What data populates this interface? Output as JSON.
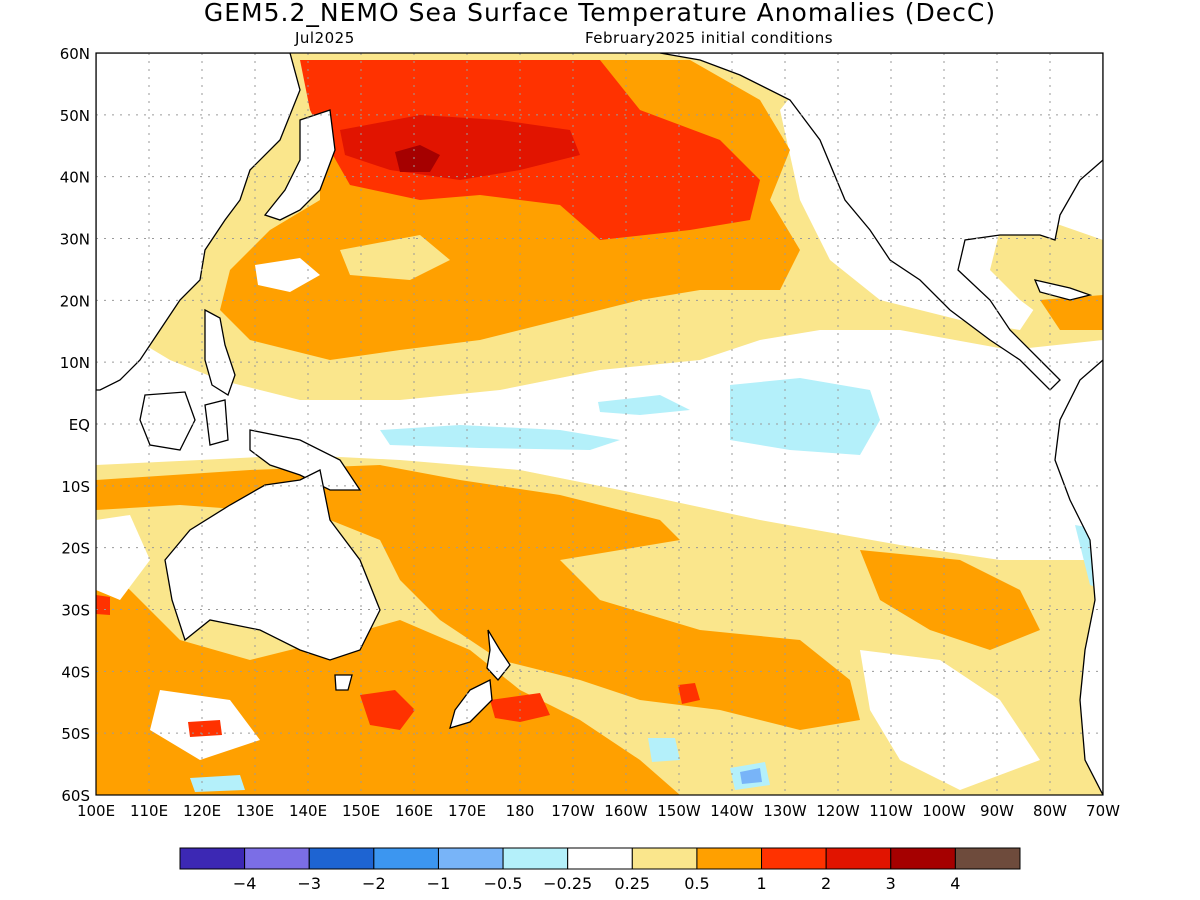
{
  "title": "GEM5.2_NEMO Sea Surface Temperature Anomalies (DecC)",
  "subtitle_left": "Jul2025",
  "subtitle_right": "February2025 initial conditions",
  "map": {
    "lon_range": [
      100,
      290
    ],
    "lat_range": [
      -60,
      60
    ],
    "y_labels": [
      "60N",
      "50N",
      "40N",
      "30N",
      "20N",
      "10N",
      "EQ",
      "10S",
      "20S",
      "30S",
      "40S",
      "50S",
      "60S"
    ],
    "x_labels": [
      "100E",
      "110E",
      "120E",
      "130E",
      "140E",
      "150E",
      "160E",
      "170E",
      "180",
      "170W",
      "160W",
      "150W",
      "140W",
      "130W",
      "120W",
      "110W",
      "100W",
      "90W",
      "80W",
      "70W"
    ]
  },
  "colorbar": {
    "colors": [
      "#3c28b4",
      "#7b6ee6",
      "#1e64d2",
      "#3c96f0",
      "#78b4f8",
      "#b4f0fa",
      "#ffffff",
      "#fae68c",
      "#ffa000",
      "#ff3200",
      "#e11400",
      "#a50000",
      "#6e4b3c"
    ],
    "labels": [
      "−4",
      "−3",
      "−2",
      "−1",
      "−0.5",
      "−0.25",
      "0.25",
      "0.5",
      "1",
      "2",
      "3",
      "4"
    ]
  },
  "palette": {
    "white": "#ffffff",
    "pale_yellow": "#fae68c",
    "orange": "#ffa000",
    "red_orange": "#ff3200",
    "red": "#e11400",
    "dark_red": "#a50000",
    "light_blue": "#b4f0fa",
    "blue": "#78b4f8"
  }
}
